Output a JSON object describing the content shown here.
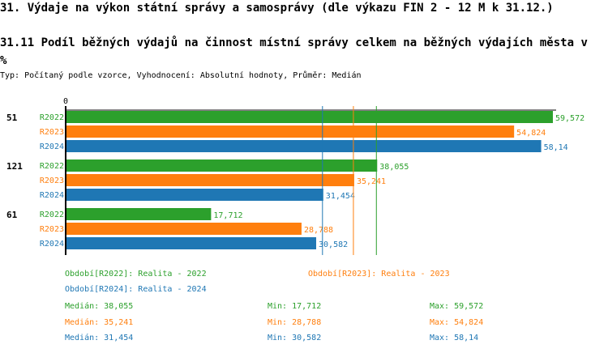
{
  "header": {
    "title": "31. Výdaje na výkon státní správy a samosprávy (dle výkazu FIN 2 - 12 M k 31.12.)",
    "subtitle": "31.11 Podíl běžných výdajů na činnost místní správy celkem na běžných výdajích města v %",
    "info": "Typ: Počítaný podle vzorce, Vyhodnocení: Absolutní hodnoty, Průměr: Medián"
  },
  "colors": {
    "R2022": "#2ca02c",
    "R2023": "#ff7f0e",
    "R2024": "#1f77b4"
  },
  "chart_data": {
    "type": "bar",
    "orientation": "horizontal",
    "x_tick": "0",
    "xlim": [
      0,
      60
    ],
    "categories": [
      "51",
      "121",
      "61"
    ],
    "series": [
      {
        "name": "R2022",
        "values": [
          59.572,
          38.055,
          17.712
        ],
        "labels": [
          "59,572",
          "38,055",
          "17,712"
        ],
        "median": 38.055
      },
      {
        "name": "R2023",
        "values": [
          54.824,
          35.241,
          28.788
        ],
        "labels": [
          "54,824",
          "35,241",
          "28,788"
        ],
        "median": 35.241
      },
      {
        "name": "R2024",
        "values": [
          58.14,
          31.454,
          30.582
        ],
        "labels": [
          "58,14",
          "31,454",
          "30,582"
        ],
        "median": 31.454
      }
    ]
  },
  "legend": {
    "periods": [
      "Období[R2022]: Realita - 2022",
      "Období[R2023]: Realita - 2023",
      "Období[R2024]: Realita - 2024"
    ],
    "stats": [
      {
        "median": "Medián: 38,055",
        "min": "Min: 17,712",
        "max": "Max: 59,572"
      },
      {
        "median": "Medián: 35,241",
        "min": "Min: 28,788",
        "max": "Max: 54,824"
      },
      {
        "median": "Medián: 31,454",
        "min": "Min: 30,582",
        "max": "Max: 58,14"
      }
    ]
  }
}
